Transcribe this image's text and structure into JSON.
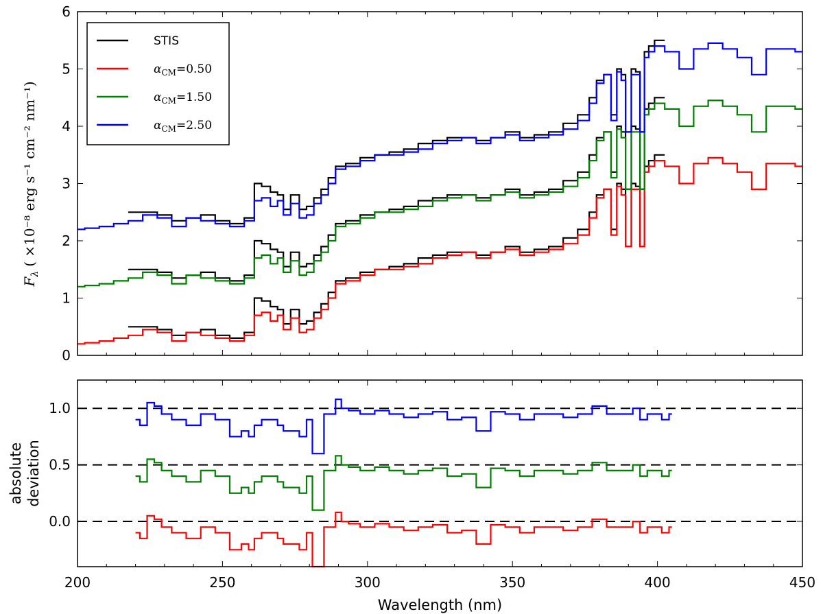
{
  "chart_data": [
    {
      "type": "line",
      "panel": "top",
      "xlim": [
        200,
        450
      ],
      "ylim": [
        0,
        6
      ],
      "ylabel": "F_λ (×10^-8 erg s^-1 cm^-2 nm^-1)",
      "ylabel_parts": {
        "symbol": "F",
        "sub": "λ",
        "unit": "( ×10⁻⁸ erg s⁻¹ cm⁻² nm⁻¹)"
      },
      "xticks": [
        200,
        250,
        300,
        350,
        400,
        450
      ],
      "yticks": [
        0,
        1,
        2,
        3,
        4,
        5,
        6
      ],
      "legend": {
        "placement": "top-left",
        "entries": [
          {
            "label": "STIS",
            "color": "#000000"
          },
          {
            "label": "α_CM = 0.50",
            "color": "#ff0000"
          },
          {
            "label": "α_CM = 1.50",
            "color": "#008000"
          },
          {
            "label": "α_CM = 2.50",
            "color": "#0000ff"
          }
        ]
      },
      "offsets": {
        "alpha_0.50": 0,
        "alpha_1.50": 1,
        "alpha_2.50": 2
      },
      "x": [
        200,
        205,
        210,
        215,
        220,
        225,
        230,
        235,
        240,
        245,
        250,
        255,
        260,
        262,
        265,
        268,
        270,
        272,
        275,
        278,
        280,
        283,
        285,
        288,
        290,
        295,
        300,
        305,
        310,
        315,
        320,
        325,
        330,
        335,
        340,
        345,
        350,
        355,
        360,
        365,
        370,
        375,
        378,
        380,
        383,
        385,
        387,
        388,
        390,
        392,
        393,
        395,
        396,
        398,
        400,
        405,
        410,
        415,
        420,
        425,
        430,
        435,
        440,
        445,
        450
      ],
      "series": [
        {
          "name": "STIS",
          "color": "#000000",
          "offsets": [
            0,
            1,
            2
          ],
          "x_start": 220,
          "x_end": 405,
          "y": [
            null,
            null,
            null,
            null,
            0.5,
            0.5,
            0.45,
            0.35,
            0.4,
            0.45,
            0.35,
            0.3,
            0.4,
            1.0,
            0.95,
            0.85,
            0.8,
            0.55,
            0.8,
            0.55,
            0.6,
            0.75,
            0.9,
            1.1,
            1.3,
            1.35,
            1.45,
            1.5,
            1.55,
            1.6,
            1.7,
            1.75,
            1.8,
            1.8,
            1.75,
            1.8,
            1.9,
            1.8,
            1.85,
            1.9,
            2.05,
            2.2,
            2.5,
            2.8,
            2.9,
            2.2,
            3.0,
            2.9,
            1.9,
            3.0,
            2.95,
            1.9,
            3.3,
            3.4,
            3.5,
            null,
            null,
            null,
            null,
            null,
            null,
            null,
            null,
            null,
            null
          ]
        },
        {
          "name": "α_CM = 0.50",
          "color": "#ff0000",
          "offsets": [
            0
          ],
          "y": [
            0.2,
            0.22,
            0.25,
            0.3,
            0.35,
            0.45,
            0.4,
            0.25,
            0.4,
            0.35,
            0.3,
            0.25,
            0.35,
            0.7,
            0.75,
            0.6,
            0.7,
            0.45,
            0.65,
            0.4,
            0.45,
            0.65,
            0.8,
            1.0,
            1.25,
            1.3,
            1.4,
            1.5,
            1.5,
            1.55,
            1.6,
            1.7,
            1.75,
            1.8,
            1.7,
            1.8,
            1.85,
            1.75,
            1.8,
            1.85,
            1.95,
            2.1,
            2.4,
            2.75,
            2.9,
            2.1,
            2.95,
            2.8,
            1.9,
            2.9,
            2.9,
            1.9,
            3.2,
            3.3,
            3.4,
            3.3,
            3.0,
            3.35,
            3.45,
            3.35,
            3.2,
            2.9,
            3.35,
            3.35,
            3.3
          ]
        },
        {
          "name": "α_CM = 1.50",
          "color": "#008000",
          "offsets": [
            1
          ],
          "y_shift": 1
        },
        {
          "name": "α_CM = 2.50",
          "color": "#0000ff",
          "offsets": [
            2
          ],
          "y_shift": 2
        }
      ]
    },
    {
      "type": "line",
      "panel": "bottom",
      "xlim": [
        200,
        450
      ],
      "ylim": [
        -0.4,
        1.25
      ],
      "xlabel": "Wavelength (nm)",
      "ylabel": [
        "absolute",
        "deviation"
      ],
      "xticks": [
        200,
        250,
        300,
        350,
        400,
        450
      ],
      "yticks": [
        0.0,
        0.5,
        1.0
      ],
      "ytick_labels": [
        "0.0",
        "0.5",
        "1.0"
      ],
      "reference_lines": [
        0.0,
        0.5,
        1.0
      ],
      "x": [
        220,
        223,
        225,
        228,
        230,
        235,
        240,
        245,
        250,
        255,
        258,
        260,
        262,
        265,
        268,
        270,
        272,
        275,
        278,
        280,
        282,
        284,
        286,
        288,
        290,
        292,
        295,
        300,
        305,
        310,
        315,
        320,
        325,
        330,
        335,
        340,
        345,
        350,
        355,
        360,
        365,
        370,
        375,
        380,
        385,
        390,
        393,
        395,
        398,
        400,
        403,
        405
      ],
      "series": [
        {
          "name": "α_CM = 0.50",
          "color": "#ff0000",
          "offset": 0.0,
          "y": [
            -0.1,
            -0.15,
            0.05,
            0.02,
            -0.05,
            -0.1,
            -0.15,
            -0.05,
            -0.1,
            -0.25,
            -0.2,
            -0.25,
            -0.15,
            -0.1,
            -0.1,
            -0.15,
            -0.2,
            -0.2,
            -0.25,
            -0.1,
            -0.4,
            -0.4,
            -0.05,
            -0.05,
            0.08,
            0.0,
            -0.02,
            -0.05,
            -0.02,
            -0.05,
            -0.08,
            -0.05,
            -0.03,
            -0.1,
            -0.08,
            -0.2,
            -0.03,
            -0.05,
            -0.1,
            -0.05,
            -0.05,
            -0.08,
            -0.05,
            0.02,
            -0.05,
            -0.05,
            0.0,
            -0.1,
            -0.05,
            -0.05,
            -0.1,
            -0.05
          ]
        },
        {
          "name": "α_CM = 1.50",
          "color": "#008000",
          "offset": 0.5
        },
        {
          "name": "α_CM = 2.50",
          "color": "#0000ff",
          "offset": 1.0
        }
      ]
    }
  ]
}
